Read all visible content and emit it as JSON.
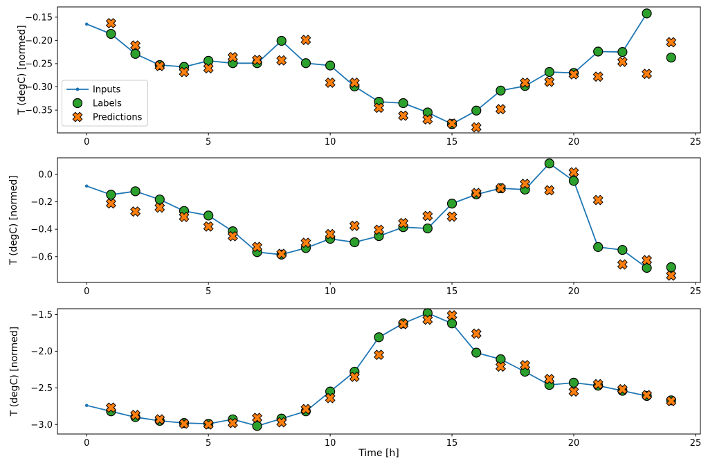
{
  "figure": {
    "background": "#ffffff",
    "xlabel": "Time [h]",
    "ylabel": "T (degC) [normed]",
    "legend": {
      "position": "center-left-of-first-subplot",
      "entries": [
        "Inputs",
        "Labels",
        "Predictions"
      ]
    },
    "colors": {
      "inputs": "#1f77b4",
      "labels": "#2ca02c",
      "predictions": "#ff7f0e",
      "marker_edge": "#000000",
      "spine": "#000000",
      "legend_border": "#cccccc",
      "legend_bg": "#ffffff"
    }
  },
  "chart_data": [
    {
      "type": "line",
      "subplot": 1,
      "ylabel": "T (degC) [normed]",
      "xlabel": "",
      "xlim": [
        -1.2,
        25.2
      ],
      "ylim": [
        -0.399,
        -0.128
      ],
      "xticks": [
        0,
        5,
        10,
        15,
        20,
        25
      ],
      "xtick_labels": [
        "0",
        "5",
        "10",
        "15",
        "20",
        "25"
      ],
      "yticks": [
        -0.15,
        -0.2,
        -0.25,
        -0.3,
        -0.35
      ],
      "ytick_labels": [
        "−0.15",
        "−0.20",
        "−0.25",
        "−0.30",
        "−0.35"
      ],
      "grid": false,
      "legend": true,
      "series": [
        {
          "name": "Inputs",
          "kind": "line-dots",
          "color": "#1f77b4",
          "x": [
            0,
            1,
            2,
            3,
            4,
            5,
            6,
            7,
            8,
            9,
            10,
            11,
            12,
            13,
            14,
            15,
            16,
            17,
            18,
            19,
            20,
            21,
            22,
            23
          ],
          "y": [
            -0.165,
            -0.186,
            -0.229,
            -0.253,
            -0.257,
            -0.244,
            -0.249,
            -0.249,
            -0.201,
            -0.249,
            -0.254,
            -0.299,
            -0.332,
            -0.335,
            -0.355,
            -0.38,
            -0.351,
            -0.308,
            -0.298,
            -0.268,
            -0.27,
            -0.224,
            -0.225,
            -0.142
          ]
        },
        {
          "name": "Labels",
          "kind": "circle",
          "color": "#2ca02c",
          "edge": "#000000",
          "x": [
            1,
            2,
            3,
            4,
            5,
            6,
            7,
            8,
            9,
            10,
            11,
            12,
            13,
            14,
            15,
            16,
            17,
            18,
            19,
            20,
            21,
            22,
            23,
            24
          ],
          "y": [
            -0.186,
            -0.229,
            -0.253,
            -0.257,
            -0.244,
            -0.249,
            -0.249,
            -0.201,
            -0.249,
            -0.254,
            -0.299,
            -0.332,
            -0.335,
            -0.355,
            -0.38,
            -0.351,
            -0.308,
            -0.298,
            -0.268,
            -0.27,
            -0.224,
            -0.225,
            -0.142,
            -0.237
          ]
        },
        {
          "name": "Predictions",
          "kind": "X",
          "color": "#ff7f0e",
          "edge": "#000000",
          "x": [
            1,
            2,
            3,
            4,
            5,
            6,
            7,
            8,
            9,
            10,
            11,
            12,
            13,
            14,
            15,
            16,
            17,
            18,
            19,
            20,
            21,
            22,
            23,
            24
          ],
          "y": [
            -0.163,
            -0.211,
            -0.255,
            -0.268,
            -0.26,
            -0.236,
            -0.242,
            -0.243,
            -0.199,
            -0.291,
            -0.291,
            -0.345,
            -0.362,
            -0.37,
            -0.379,
            -0.387,
            -0.348,
            -0.291,
            -0.289,
            -0.273,
            -0.278,
            -0.246,
            -0.272,
            -0.204
          ]
        }
      ]
    },
    {
      "type": "line",
      "subplot": 2,
      "ylabel": "T (degC) [normed]",
      "xlabel": "",
      "xlim": [
        -1.2,
        25.2
      ],
      "ylim": [
        -0.788,
        0.121
      ],
      "xticks": [
        0,
        5,
        10,
        15,
        20,
        25
      ],
      "xtick_labels": [
        "0",
        "5",
        "10",
        "15",
        "20",
        "25"
      ],
      "yticks": [
        0.0,
        -0.2,
        -0.4,
        -0.6
      ],
      "ytick_labels": [
        "0.0",
        "−0.2",
        "−0.4",
        "−0.6"
      ],
      "grid": false,
      "legend": false,
      "series": [
        {
          "name": "Inputs",
          "kind": "line-dots",
          "color": "#1f77b4",
          "x": [
            0,
            1,
            2,
            3,
            4,
            5,
            6,
            7,
            8,
            9,
            10,
            11,
            12,
            13,
            14,
            15,
            16,
            17,
            18,
            19,
            20,
            21,
            22,
            23
          ],
          "y": [
            -0.085,
            -0.148,
            -0.123,
            -0.183,
            -0.267,
            -0.3,
            -0.415,
            -0.567,
            -0.585,
            -0.537,
            -0.47,
            -0.495,
            -0.45,
            -0.385,
            -0.394,
            -0.213,
            -0.146,
            -0.101,
            -0.111,
            0.08,
            -0.047,
            -0.53,
            -0.551,
            -0.682
          ]
        },
        {
          "name": "Labels",
          "kind": "circle",
          "color": "#2ca02c",
          "edge": "#000000",
          "x": [
            1,
            2,
            3,
            4,
            5,
            6,
            7,
            8,
            9,
            10,
            11,
            12,
            13,
            14,
            15,
            16,
            17,
            18,
            19,
            20,
            21,
            22,
            23,
            24
          ],
          "y": [
            -0.148,
            -0.123,
            -0.183,
            -0.267,
            -0.3,
            -0.415,
            -0.567,
            -0.585,
            -0.537,
            -0.47,
            -0.495,
            -0.45,
            -0.385,
            -0.394,
            -0.213,
            -0.146,
            -0.101,
            -0.111,
            0.08,
            -0.047,
            -0.53,
            -0.551,
            -0.682,
            -0.677
          ]
        },
        {
          "name": "Predictions",
          "kind": "X",
          "color": "#ff7f0e",
          "edge": "#000000",
          "x": [
            1,
            2,
            3,
            4,
            5,
            6,
            7,
            8,
            9,
            10,
            11,
            12,
            13,
            14,
            15,
            16,
            17,
            18,
            19,
            20,
            21,
            22,
            23,
            24
          ],
          "y": [
            -0.212,
            -0.271,
            -0.242,
            -0.31,
            -0.38,
            -0.451,
            -0.529,
            -0.58,
            -0.499,
            -0.436,
            -0.375,
            -0.404,
            -0.355,
            -0.303,
            -0.308,
            -0.136,
            -0.101,
            -0.069,
            -0.116,
            0.015,
            -0.187,
            -0.657,
            -0.626,
            -0.738
          ]
        }
      ]
    },
    {
      "type": "line",
      "subplot": 3,
      "ylabel": "T (degC) [normed]",
      "xlabel": "Time [h]",
      "xlim": [
        -1.2,
        25.2
      ],
      "ylim": [
        -3.13,
        -1.42
      ],
      "xticks": [
        0,
        5,
        10,
        15,
        20,
        25
      ],
      "xtick_labels": [
        "0",
        "5",
        "10",
        "15",
        "20",
        "25"
      ],
      "yticks": [
        -1.5,
        -2.0,
        -2.5,
        -3.0
      ],
      "ytick_labels": [
        "−1.5",
        "−2.0",
        "−2.5",
        "−3.0"
      ],
      "grid": false,
      "legend": false,
      "series": [
        {
          "name": "Inputs",
          "kind": "line-dots",
          "color": "#1f77b4",
          "x": [
            0,
            1,
            2,
            3,
            4,
            5,
            6,
            7,
            8,
            9,
            10,
            11,
            12,
            13,
            14,
            15,
            16,
            17,
            18,
            19,
            20,
            21,
            22,
            23
          ],
          "y": [
            -2.74,
            -2.82,
            -2.9,
            -2.95,
            -2.98,
            -2.99,
            -2.93,
            -3.02,
            -2.92,
            -2.82,
            -2.55,
            -2.28,
            -1.81,
            -1.62,
            -1.48,
            -1.62,
            -2.02,
            -2.11,
            -2.28,
            -2.46,
            -2.43,
            -2.47,
            -2.54,
            -2.61
          ]
        },
        {
          "name": "Labels",
          "kind": "circle",
          "color": "#2ca02c",
          "edge": "#000000",
          "x": [
            1,
            2,
            3,
            4,
            5,
            6,
            7,
            8,
            9,
            10,
            11,
            12,
            13,
            14,
            15,
            16,
            17,
            18,
            19,
            20,
            21,
            22,
            23,
            24
          ],
          "y": [
            -2.82,
            -2.9,
            -2.95,
            -2.98,
            -2.99,
            -2.93,
            -3.02,
            -2.92,
            -2.82,
            -2.55,
            -2.28,
            -1.81,
            -1.62,
            -1.48,
            -1.62,
            -2.02,
            -2.11,
            -2.28,
            -2.46,
            -2.43,
            -2.47,
            -2.54,
            -2.61,
            -2.67
          ]
        },
        {
          "name": "Predictions",
          "kind": "X",
          "color": "#ff7f0e",
          "edge": "#000000",
          "x": [
            1,
            2,
            3,
            4,
            5,
            6,
            7,
            8,
            9,
            10,
            11,
            12,
            13,
            14,
            15,
            16,
            17,
            18,
            19,
            20,
            21,
            22,
            23,
            24
          ],
          "y": [
            -2.77,
            -2.87,
            -2.93,
            -2.99,
            -3.0,
            -2.98,
            -2.91,
            -2.97,
            -2.79,
            -2.64,
            -2.35,
            -2.05,
            -1.63,
            -1.57,
            -1.51,
            -1.76,
            -2.21,
            -2.19,
            -2.38,
            -2.55,
            -2.45,
            -2.52,
            -2.6,
            -2.68
          ]
        }
      ]
    }
  ]
}
